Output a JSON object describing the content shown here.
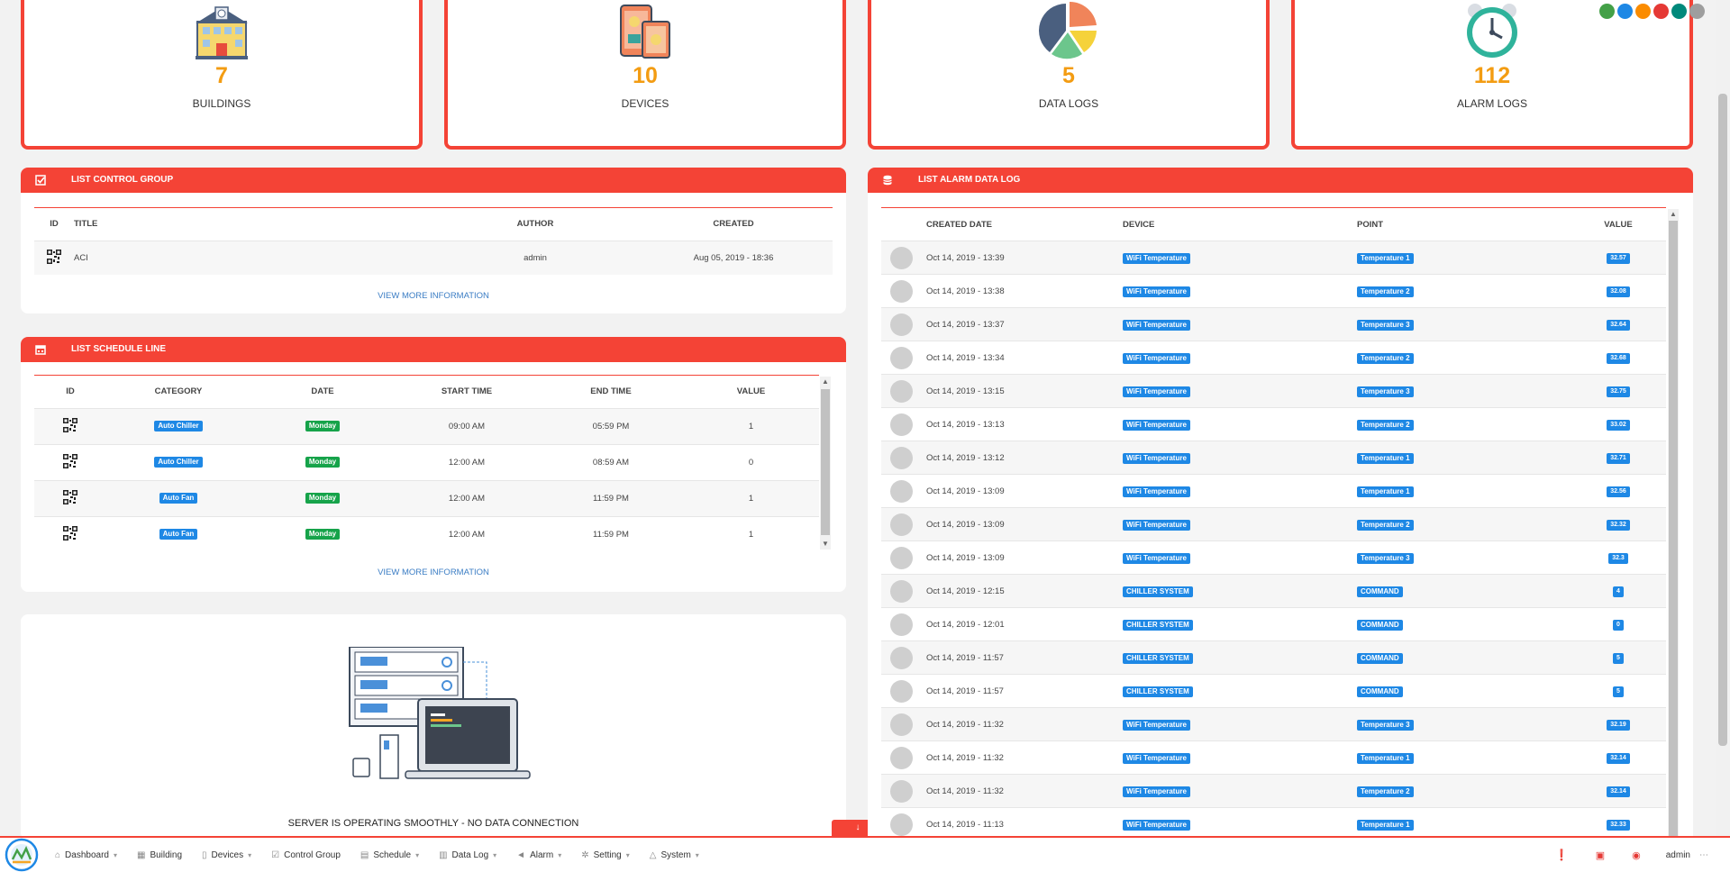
{
  "stats": [
    {
      "number": "7",
      "label": "BUILDINGS",
      "icon": "building-icon"
    },
    {
      "number": "10",
      "label": "DEVICES",
      "icon": "devices-icon"
    },
    {
      "number": "5",
      "label": "DATA LOGS",
      "icon": "pie-chart-icon"
    },
    {
      "number": "112",
      "label": "ALARM LOGS",
      "icon": "alarm-clock-icon"
    }
  ],
  "theme_dots": [
    "#43a047",
    "#1e88e5",
    "#fb8c00",
    "#e53935",
    "#00897b",
    "#9e9e9e"
  ],
  "control_group": {
    "title": "LIST CONTROL GROUP",
    "headers": [
      "ID",
      "TITLE",
      "AUTHOR",
      "CREATED"
    ],
    "rows": [
      {
        "title": "ACI",
        "author": "admin",
        "created": "Aug 05, 2019 - 18:36"
      }
    ],
    "more": "VIEW MORE INFORMATION"
  },
  "schedule": {
    "title": "LIST SCHEDULE LINE",
    "headers": [
      "ID",
      "CATEGORY",
      "DATE",
      "START TIME",
      "END TIME",
      "VALUE"
    ],
    "rows": [
      {
        "category": "Auto Chiller",
        "date": "Monday",
        "start": "09:00 AM",
        "end": "05:59 PM",
        "value": "1"
      },
      {
        "category": "Auto Chiller",
        "date": "Monday",
        "start": "12:00 AM",
        "end": "08:59 AM",
        "value": "0"
      },
      {
        "category": "Auto Fan",
        "date": "Monday",
        "start": "12:00 AM",
        "end": "11:59 PM",
        "value": "1"
      },
      {
        "category": "Auto Fan",
        "date": "Monday",
        "start": "12:00 AM",
        "end": "11:59 PM",
        "value": "1"
      }
    ],
    "more": "VIEW MORE INFORMATION"
  },
  "server": {
    "status": "SERVER IS OPERATING SMOOTHLY - NO DATA CONNECTION"
  },
  "alarm_log": {
    "title": "LIST ALARM DATA LOG",
    "headers": [
      "CREATED DATE",
      "DEVICE",
      "POINT",
      "VALUE"
    ],
    "rows": [
      {
        "date": "Oct 14, 2019 - 13:39",
        "device": "WiFi Temperature",
        "point": "Temperature 1",
        "value": "32.57"
      },
      {
        "date": "Oct 14, 2019 - 13:38",
        "device": "WiFi Temperature",
        "point": "Temperature 2",
        "value": "32.08"
      },
      {
        "date": "Oct 14, 2019 - 13:37",
        "device": "WiFi Temperature",
        "point": "Temperature 3",
        "value": "32.64"
      },
      {
        "date": "Oct 14, 2019 - 13:34",
        "device": "WiFi Temperature",
        "point": "Temperature 2",
        "value": "32.68"
      },
      {
        "date": "Oct 14, 2019 - 13:15",
        "device": "WiFi Temperature",
        "point": "Temperature 3",
        "value": "32.75"
      },
      {
        "date": "Oct 14, 2019 - 13:13",
        "device": "WiFi Temperature",
        "point": "Temperature 2",
        "value": "33.02"
      },
      {
        "date": "Oct 14, 2019 - 13:12",
        "device": "WiFi Temperature",
        "point": "Temperature 1",
        "value": "32.71"
      },
      {
        "date": "Oct 14, 2019 - 13:09",
        "device": "WiFi Temperature",
        "point": "Temperature 1",
        "value": "32.56"
      },
      {
        "date": "Oct 14, 2019 - 13:09",
        "device": "WiFi Temperature",
        "point": "Temperature 2",
        "value": "32.32"
      },
      {
        "date": "Oct 14, 2019 - 13:09",
        "device": "WiFi Temperature",
        "point": "Temperature 3",
        "value": "32.3"
      },
      {
        "date": "Oct 14, 2019 - 12:15",
        "device": "CHILLER SYSTEM",
        "point": "COMMAND",
        "value": "4"
      },
      {
        "date": "Oct 14, 2019 - 12:01",
        "device": "CHILLER SYSTEM",
        "point": "COMMAND",
        "value": "0"
      },
      {
        "date": "Oct 14, 2019 - 11:57",
        "device": "CHILLER SYSTEM",
        "point": "COMMAND",
        "value": "5"
      },
      {
        "date": "Oct 14, 2019 - 11:57",
        "device": "CHILLER SYSTEM",
        "point": "COMMAND",
        "value": "5"
      },
      {
        "date": "Oct 14, 2019 - 11:32",
        "device": "WiFi Temperature",
        "point": "Temperature 3",
        "value": "32.19"
      },
      {
        "date": "Oct 14, 2019 - 11:32",
        "device": "WiFi Temperature",
        "point": "Temperature 1",
        "value": "32.14"
      },
      {
        "date": "Oct 14, 2019 - 11:32",
        "device": "WiFi Temperature",
        "point": "Temperature 2",
        "value": "32.14"
      },
      {
        "date": "Oct 14, 2019 - 11:13",
        "device": "WiFi Temperature",
        "point": "Temperature 1",
        "value": "32.33"
      }
    ]
  },
  "nav": {
    "items": [
      {
        "label": "Dashboard",
        "icon": "home-icon",
        "caret": true
      },
      {
        "label": "Building",
        "icon": "building-small-icon",
        "caret": false
      },
      {
        "label": "Devices",
        "icon": "device-icon",
        "caret": true
      },
      {
        "label": "Control Group",
        "icon": "checkbox-icon",
        "caret": false
      },
      {
        "label": "Schedule",
        "icon": "calendar-icon",
        "caret": true
      },
      {
        "label": "Data Log",
        "icon": "chart-icon",
        "caret": true
      },
      {
        "label": "Alarm",
        "icon": "megaphone-icon",
        "caret": true
      },
      {
        "label": "Setting",
        "icon": "cogs-icon",
        "caret": true
      },
      {
        "label": "System",
        "icon": "warning-icon",
        "caret": true
      }
    ],
    "user": "admin"
  }
}
